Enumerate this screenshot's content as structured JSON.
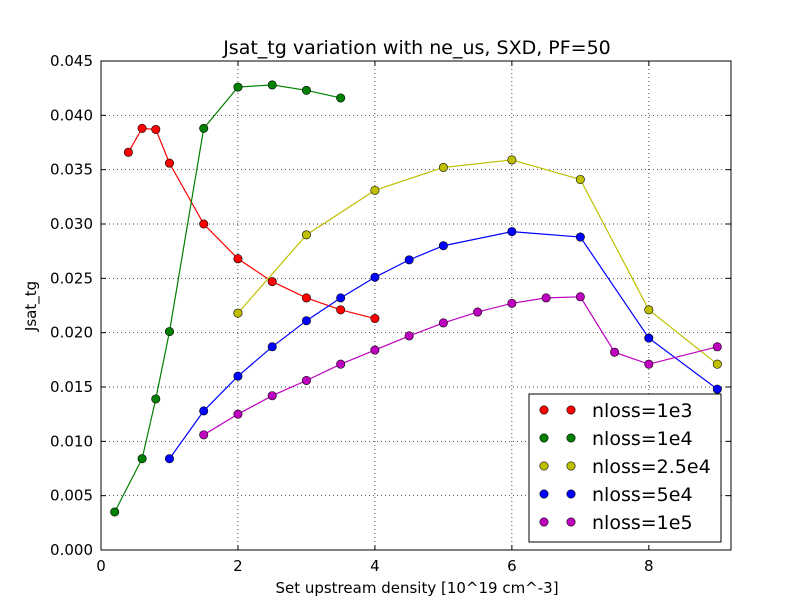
{
  "chart_data": {
    "type": "line",
    "title": "Jsat_tg variation with ne_us, SXD, PF=50",
    "xlabel": "Set upstream density [10^19 cm^-3]",
    "ylabel": "Jsat_tg",
    "xlim": [
      0,
      9.2
    ],
    "ylim": [
      0,
      0.045
    ],
    "xticks": [
      0,
      2,
      4,
      6,
      8
    ],
    "xtick_labels": [
      "0",
      "2",
      "4",
      "6",
      "8"
    ],
    "yticks": [
      0,
      0.005,
      0.01,
      0.015,
      0.02,
      0.025,
      0.03,
      0.035,
      0.04,
      0.045
    ],
    "ytick_labels": [
      "0.000",
      "0.005",
      "0.010",
      "0.015",
      "0.020",
      "0.025",
      "0.030",
      "0.035",
      "0.040",
      "0.045"
    ],
    "grid": true,
    "legend_position": "lower-right",
    "series": [
      {
        "name": "nloss=1e3",
        "color": "#ff0000",
        "x": [
          0.4,
          0.6,
          0.8,
          1.0,
          1.5,
          2.0,
          2.5,
          3.0,
          3.5,
          4.0
        ],
        "y": [
          0.0366,
          0.0388,
          0.0387,
          0.0356,
          0.03,
          0.0268,
          0.0247,
          0.0232,
          0.0221,
          0.0213
        ]
      },
      {
        "name": "nloss=1e4",
        "color": "#008000",
        "x": [
          0.2,
          0.6,
          0.8,
          1.0,
          1.5,
          2.0,
          2.5,
          3.0,
          3.5
        ],
        "y": [
          0.0035,
          0.0084,
          0.0139,
          0.0201,
          0.0388,
          0.0426,
          0.0428,
          0.0423,
          0.0416
        ]
      },
      {
        "name": "nloss=2.5e4",
        "color": "#bfbf00",
        "x": [
          2.0,
          3.0,
          4.0,
          5.0,
          6.0,
          7.0,
          8.0,
          9.0
        ],
        "y": [
          0.0218,
          0.029,
          0.0331,
          0.0352,
          0.0359,
          0.0341,
          0.0221,
          0.0171
        ]
      },
      {
        "name": "nloss=5e4",
        "color": "#0000ff",
        "x": [
          1.0,
          1.5,
          2.0,
          2.5,
          3.0,
          3.5,
          4.0,
          4.5,
          5.0,
          6.0,
          7.0,
          8.0,
          9.0
        ],
        "y": [
          0.0084,
          0.0128,
          0.016,
          0.0187,
          0.0211,
          0.0232,
          0.0251,
          0.0267,
          0.028,
          0.0293,
          0.0288,
          0.0195,
          0.0148
        ]
      },
      {
        "name": "nloss=1e5",
        "color": "#bf00bf",
        "x": [
          1.5,
          2.0,
          2.5,
          3.0,
          3.5,
          4.0,
          4.5,
          5.0,
          5.5,
          6.0,
          6.5,
          7.0,
          7.5,
          8.0,
          9.0
        ],
        "y": [
          0.0106,
          0.0125,
          0.0142,
          0.0156,
          0.0171,
          0.0184,
          0.0197,
          0.0209,
          0.0219,
          0.0227,
          0.0232,
          0.0233,
          0.0182,
          0.0171,
          0.0187
        ]
      }
    ]
  }
}
